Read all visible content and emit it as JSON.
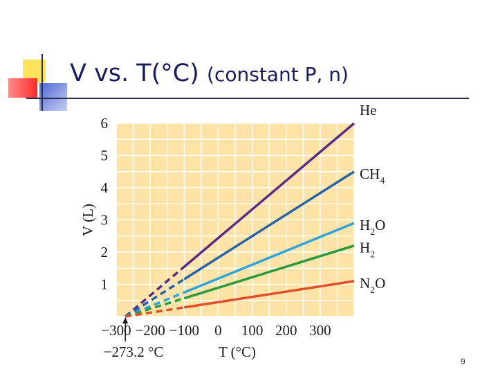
{
  "slide": {
    "title_main": "V vs. T(°C)",
    "title_sub": "(constant P, n)",
    "page_number": "9"
  },
  "colors": {
    "plot_background": "#fde4a6",
    "grid": "#ffffff",
    "He": "#5b2a86",
    "CH4": "#2763a8",
    "H2O": "#2ea3dc",
    "H2": "#2a9a3e",
    "N2O": "#e0502a"
  },
  "chart_data": {
    "type": "line",
    "xlabel": "T (°C)",
    "ylabel": "V (L)",
    "xlim": [
      -300,
      400
    ],
    "ylim": [
      0,
      6
    ],
    "x_ticks": [
      -300,
      -200,
      -100,
      0,
      100,
      200,
      300
    ],
    "x_tick_labels": [
      "−300",
      "−200",
      "−100",
      "0",
      "100",
      "200",
      "300"
    ],
    "y_ticks": [
      1,
      2,
      3,
      4,
      5,
      6
    ],
    "y_tick_labels": [
      "1",
      "2",
      "3",
      "4",
      "5",
      "6"
    ],
    "grid": true,
    "annotation": "−273.2 °C",
    "annotation_x": -273.2,
    "extrapolated_dashed_below_x": -100,
    "series": [
      {
        "name": "He",
        "base": "He",
        "sub": "",
        "color_key": "He",
        "points": [
          [
            -273.2,
            0
          ],
          [
            400,
            6.0
          ]
        ]
      },
      {
        "name": "CH4",
        "base": "CH",
        "sub": "4",
        "color_key": "CH4",
        "points": [
          [
            -273.2,
            0
          ],
          [
            400,
            4.5
          ]
        ]
      },
      {
        "name": "H2O",
        "base": "H",
        "sub": "2",
        "tail": "O",
        "color_key": "H2O",
        "points": [
          [
            -273.2,
            0
          ],
          [
            400,
            2.9
          ]
        ]
      },
      {
        "name": "H2",
        "base": "H",
        "sub": "2",
        "color_key": "H2",
        "points": [
          [
            -273.2,
            0
          ],
          [
            400,
            2.2
          ]
        ]
      },
      {
        "name": "N2O",
        "base": "N",
        "sub": "2",
        "tail": "O",
        "color_key": "N2O",
        "points": [
          [
            -273.2,
            0
          ],
          [
            400,
            1.1
          ]
        ]
      }
    ]
  }
}
